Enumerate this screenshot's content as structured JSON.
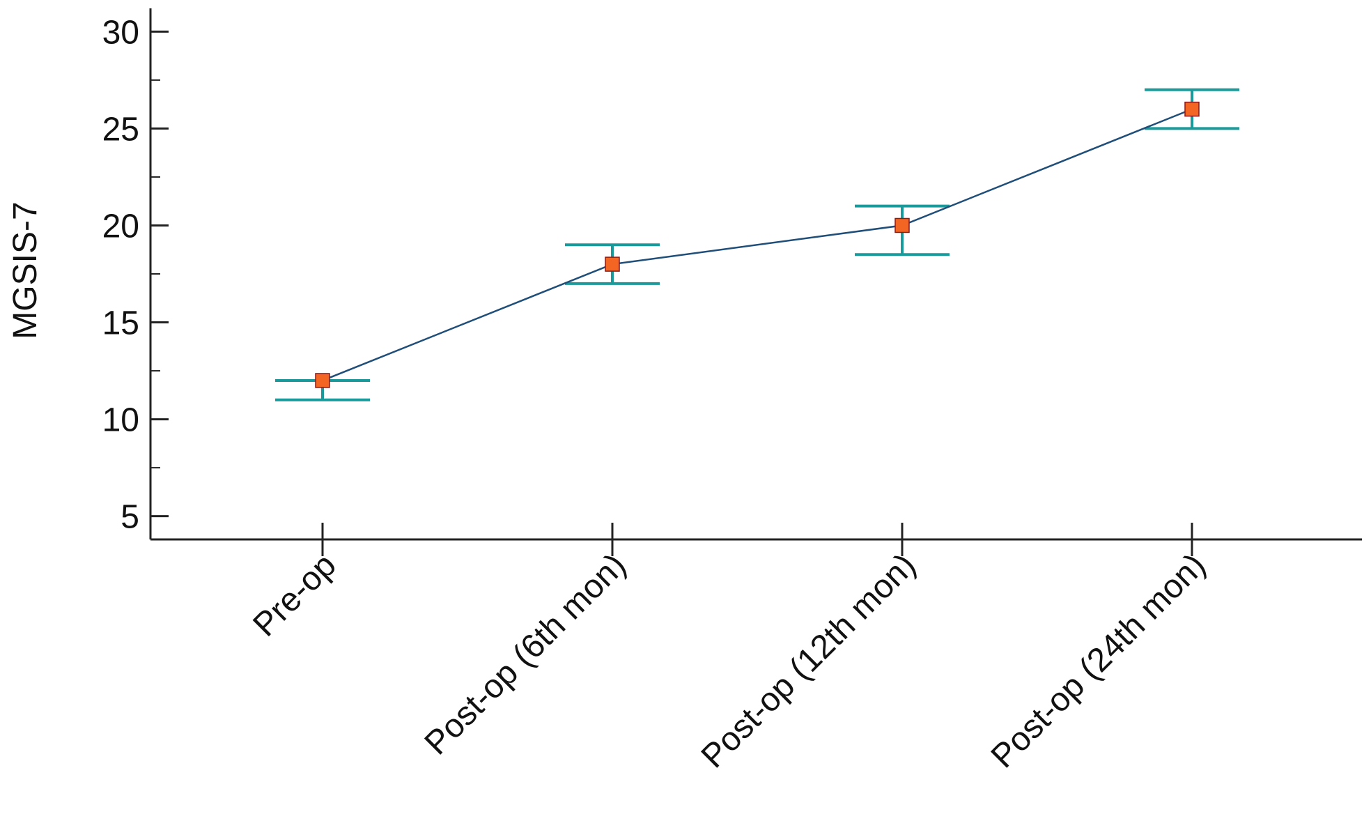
{
  "chart_data": {
    "type": "line",
    "categories": [
      "Pre-op",
      "Post-op (6th mon)",
      "Post-op (12th mon)",
      "Post-op (24th mon)"
    ],
    "series": [
      {
        "values": [
          12,
          18,
          20,
          26
        ],
        "error_low": [
          11,
          17,
          18.5,
          25
        ],
        "error_high": [
          12,
          19,
          21,
          27
        ]
      }
    ],
    "ylabel": "MGSIS-7",
    "xlabel": "",
    "ylim": [
      3.8,
      31.2
    ],
    "yticks": [
      5,
      10,
      15,
      20,
      25,
      30
    ],
    "minor_ytick_step": 2.5,
    "grid": false,
    "colors": {
      "line": "#1f4e79",
      "marker_fill": "#f26522",
      "marker_stroke": "#8b1a1a",
      "error_bar": "#1a9a9a",
      "axis": "#222222"
    }
  }
}
